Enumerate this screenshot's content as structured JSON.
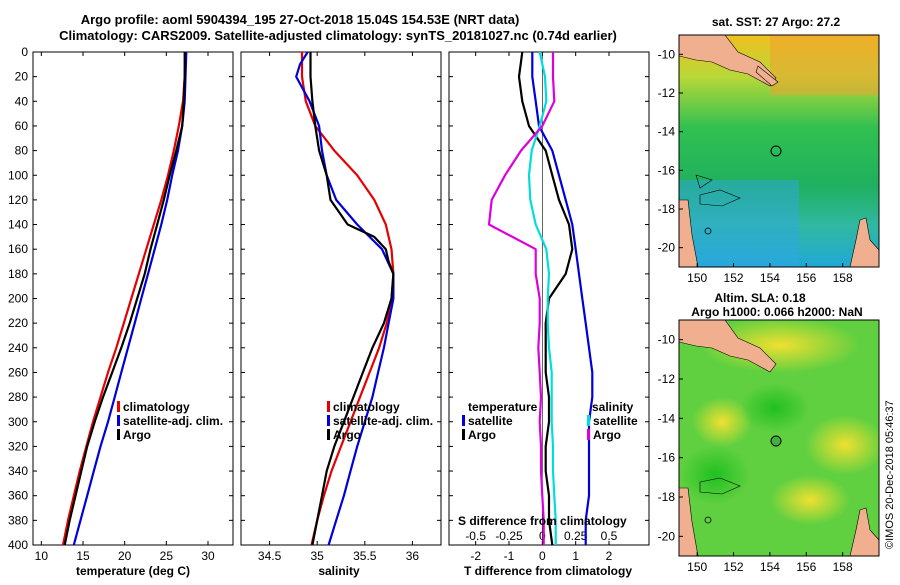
{
  "header": {
    "title_line1": "Argo profile: aoml 5904394_195 27-Oct-2018 15.04S 154.53E (NRT data)",
    "title_line2": "Climatology: CARS2009. Satellite-adjusted climatology: synTS_20181027.nc (0.74d earlier)"
  },
  "depth_ticks": [
    "0",
    "20",
    "40",
    "60",
    "80",
    "100",
    "120",
    "140",
    "160",
    "180",
    "200",
    "220",
    "240",
    "260",
    "280",
    "300",
    "320",
    "340",
    "360",
    "380",
    "400"
  ],
  "colors": {
    "climatology": "#e60000",
    "satellite": "#0000dd",
    "argo": "#000000",
    "salinity": "#00dddd",
    "argo_sal": "#dd00dd"
  },
  "chart_data": [
    {
      "type": "line",
      "name": "temperature",
      "xlabel": "temperature (deg C)",
      "ylabel": "depth",
      "xlim": [
        9,
        33
      ],
      "ylim": [
        400,
        0
      ],
      "xticks": [
        "10",
        "15",
        "20",
        "25",
        "30"
      ],
      "legend": [
        "climatology",
        "satellite-adj. clim.",
        "Argo"
      ],
      "series": [
        {
          "name": "climatology",
          "depth": [
            0,
            20,
            40,
            60,
            80,
            100,
            120,
            140,
            160,
            180,
            200,
            220,
            240,
            260,
            280,
            300,
            320,
            340,
            360,
            380,
            400
          ],
          "values": [
            27.3,
            27.2,
            27,
            26.5,
            25.9,
            25.2,
            24.4,
            23.5,
            22.6,
            21.7,
            20.8,
            19.9,
            19,
            18,
            17.1,
            16.2,
            15.4,
            14.6,
            13.9,
            13.2,
            12.6
          ]
        },
        {
          "name": "satellite-adj. clim.",
          "depth": [
            0,
            20,
            40,
            60,
            80,
            100,
            120,
            140,
            160,
            180,
            200,
            220,
            240,
            260,
            280,
            300,
            320,
            340,
            360,
            380,
            400
          ],
          "values": [
            27.4,
            27.3,
            27.2,
            26.9,
            26.4,
            25.7,
            25.1,
            24.4,
            23.6,
            22.8,
            22,
            21.2,
            20.4,
            19.6,
            18.8,
            18,
            17.1,
            16.3,
            15.5,
            14.7,
            13.9
          ]
        },
        {
          "name": "Argo",
          "depth": [
            0,
            20,
            40,
            60,
            80,
            100,
            120,
            140,
            160,
            180,
            200,
            220,
            240,
            260,
            280,
            300,
            320,
            340,
            360,
            380,
            400
          ],
          "values": [
            27.2,
            27.2,
            27.1,
            26.9,
            26.2,
            25.4,
            24.7,
            23.9,
            23.1,
            22.4,
            21.5,
            20.6,
            19.6,
            18.5,
            17.4,
            16.4,
            15.5,
            14.8,
            14.1,
            13.4,
            12.8
          ]
        }
      ]
    },
    {
      "type": "line",
      "name": "salinity",
      "xlabel": "salinity",
      "ylabel": "depth",
      "xlim": [
        34.2,
        36.3
      ],
      "ylim": [
        400,
        0
      ],
      "xticks": [
        "34.5",
        "35",
        "35.5",
        "36"
      ],
      "legend": [
        "climatology",
        "satellite-adj. clim.",
        "Argo"
      ],
      "series": [
        {
          "name": "climatology",
          "depth": [
            0,
            20,
            40,
            60,
            80,
            100,
            120,
            140,
            160,
            180,
            200,
            220,
            240,
            260,
            280,
            300,
            320,
            340,
            360,
            380,
            400
          ],
          "values": [
            34.84,
            34.84,
            34.88,
            34.98,
            35.18,
            35.42,
            35.6,
            35.72,
            35.78,
            35.8,
            35.78,
            35.73,
            35.65,
            35.55,
            35.45,
            35.35,
            35.25,
            35.15,
            35.07,
            35.0,
            34.94
          ]
        },
        {
          "name": "satellite-adj. clim.",
          "depth": [
            0,
            10,
            20,
            40,
            60,
            80,
            100,
            120,
            140,
            160,
            180,
            200,
            220,
            240,
            260,
            280,
            300,
            320,
            340,
            360,
            380,
            400
          ],
          "values": [
            34.9,
            34.82,
            34.78,
            34.92,
            35.02,
            35.05,
            35.1,
            35.2,
            35.42,
            35.68,
            35.8,
            35.8,
            35.75,
            35.7,
            35.64,
            35.58,
            35.5,
            35.42,
            35.35,
            35.28,
            35.2,
            35.12
          ]
        },
        {
          "name": "Argo",
          "depth": [
            0,
            20,
            40,
            60,
            80,
            100,
            120,
            140,
            150,
            160,
            170,
            180,
            200,
            220,
            240,
            260,
            280,
            300,
            320,
            340,
            360,
            380,
            400
          ],
          "values": [
            34.93,
            34.93,
            34.95,
            34.98,
            35.02,
            35.1,
            35.14,
            35.32,
            35.6,
            35.72,
            35.75,
            35.8,
            35.78,
            35.7,
            35.58,
            35.48,
            35.38,
            35.28,
            35.18,
            35.1,
            35.05,
            35.0,
            34.95
          ]
        }
      ]
    },
    {
      "type": "line",
      "name": "difference",
      "xlabel": "T difference from climatology",
      "ylabel": "depth",
      "xlim": [
        -2.8,
        3.2
      ],
      "ylim": [
        400,
        0
      ],
      "xticks": [
        "-2",
        "-1",
        "0",
        "1",
        "2"
      ],
      "xticks_top": [
        "-0.5",
        "-0.25",
        "0",
        "0.25",
        "0.5"
      ],
      "xlabel_top": "S difference from climatology",
      "legend_temperature": {
        "title": "temperature",
        "items": [
          "satellite",
          "Argo"
        ]
      },
      "legend_salinity": {
        "title": "salinity",
        "items": [
          "satellite",
          "Argo"
        ]
      },
      "series": [
        {
          "name": "T satellite",
          "depth": [
            0,
            20,
            40,
            60,
            80,
            100,
            120,
            140,
            160,
            180,
            200,
            220,
            240,
            260,
            280,
            300,
            320,
            340,
            360,
            380,
            400
          ],
          "values": [
            -0.3,
            -0.3,
            -0.2,
            -0.1,
            0.3,
            0.5,
            0.7,
            0.9,
            1.0,
            1.1,
            1.2,
            1.3,
            1.4,
            1.5,
            1.5,
            1.4,
            1.4,
            1.4,
            1.4,
            1.3,
            1.3
          ]
        },
        {
          "name": "T Argo",
          "depth": [
            0,
            20,
            40,
            60,
            80,
            100,
            120,
            140,
            160,
            180,
            200,
            220,
            240,
            260,
            280,
            300,
            320,
            340,
            360,
            380,
            400
          ],
          "values": [
            -0.6,
            -0.7,
            -0.6,
            -0.4,
            0.1,
            0.3,
            0.5,
            0.8,
            0.9,
            0.7,
            0.2,
            0.1,
            0.1,
            0.1,
            0.2,
            0.2,
            0.1,
            0.1,
            0.2,
            0.2,
            0.3
          ]
        },
        {
          "name": "S satellite",
          "depth": [
            0,
            20,
            40,
            60,
            80,
            100,
            120,
            140,
            160,
            180,
            200,
            220,
            240,
            260,
            280,
            300,
            320,
            340,
            360,
            380,
            400
          ],
          "values": [
            -0.02,
            0.02,
            0.03,
            -0.02,
            -0.08,
            -0.1,
            -0.09,
            -0.05,
            0.03,
            0.05,
            0.04,
            0.04,
            0.05,
            0.07,
            0.07,
            0.07,
            0.08,
            0.08,
            0.09,
            0.1,
            0.1
          ]
        },
        {
          "name": "S Argo",
          "depth": [
            0,
            20,
            40,
            60,
            80,
            100,
            120,
            140,
            160,
            180,
            200,
            220,
            240,
            260,
            280,
            300,
            320,
            340,
            360,
            380,
            400
          ],
          "values": [
            0.08,
            0.08,
            0.09,
            0.0,
            -0.16,
            -0.28,
            -0.38,
            -0.4,
            -0.05,
            -0.05,
            -0.02,
            -0.02,
            -0.03,
            -0.02,
            -0.01,
            -0.02,
            -0.01,
            -0.01,
            0.0,
            0.01,
            0.01
          ]
        }
      ]
    }
  ],
  "maps": {
    "sst": {
      "title": "sat. SST: 27 Argo: 27.2",
      "lat_ticks": [
        "-10",
        "-12",
        "-14",
        "-16",
        "-18",
        "-20"
      ],
      "lon_ticks": [
        "150",
        "152",
        "154",
        "156",
        "158"
      ]
    },
    "sla": {
      "title_line1": "Altim. SLA: 0.18",
      "title_line2": "Argo h1000: 0.066 h2000: NaN",
      "lat_ticks": [
        "-10",
        "-12",
        "-14",
        "-16",
        "-18",
        "-20"
      ],
      "lon_ticks": [
        "150",
        "152",
        "154",
        "156",
        "158"
      ]
    }
  },
  "footer": {
    "credit": "©IMOS 20-Dec-2018 05:46:37"
  }
}
